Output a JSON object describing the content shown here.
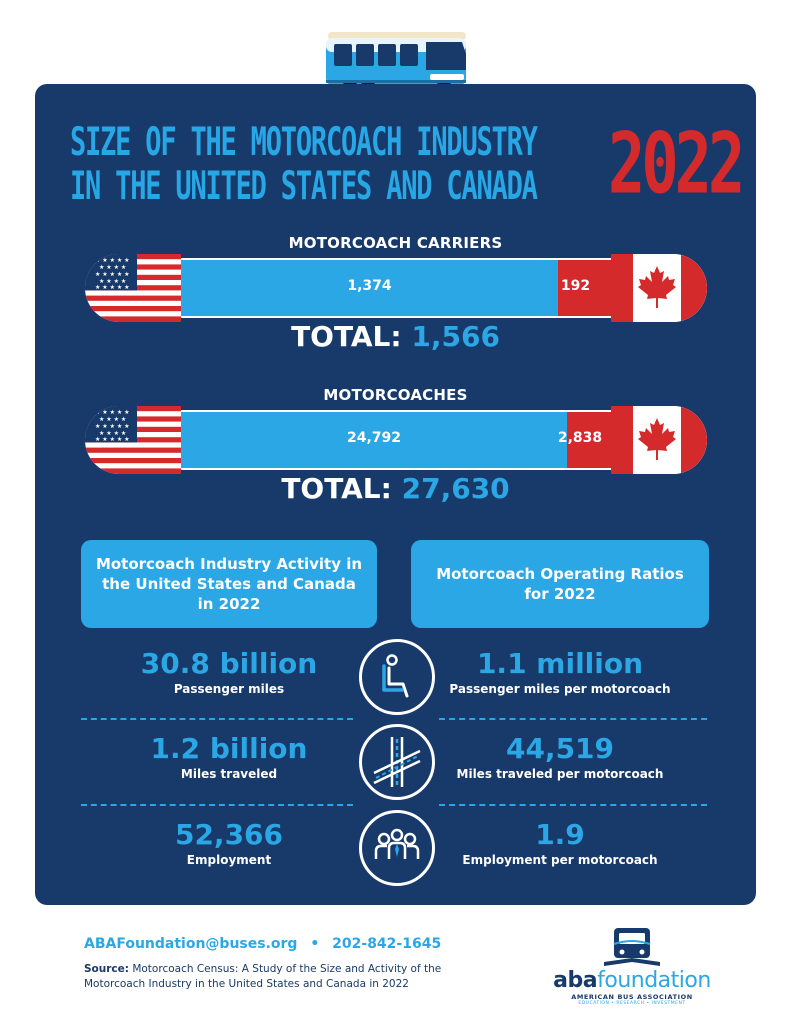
{
  "title": {
    "line1": "SIZE OF THE MOTORCOACH INDUSTRY",
    "line2": "IN THE UNITED STATES AND CANADA",
    "year": "2022"
  },
  "colors": {
    "navy": "#183a6a",
    "blue": "#2ba7e6",
    "red": "#d42a2c"
  },
  "carriers": {
    "label": "MOTORCOACH CARRIERS",
    "us_value": "1,374",
    "ca_value": "192",
    "us_share": 0.877,
    "total_label": "TOTAL:",
    "total_value": "1,566"
  },
  "motorcoaches": {
    "label": "MOTORCOACHES",
    "us_value": "24,792",
    "ca_value": "2,838",
    "us_share": 0.897,
    "total_label": "TOTAL:",
    "total_value": "27,630"
  },
  "cards": {
    "activity": "Motorcoach Industry Activity in the United States and Canada in 2022",
    "ratios": "Motorcoach Operating Ratios for 2022"
  },
  "stats": [
    {
      "left_value": "30.8 billion",
      "left_label": "Passenger miles",
      "icon": "seat-icon",
      "right_value": "1.1 million",
      "right_label": "Passenger miles per motorcoach"
    },
    {
      "left_value": "1.2 billion",
      "left_label": "Miles traveled",
      "icon": "road-icon",
      "right_value": "44,519",
      "right_label": "Miles traveled per motorcoach"
    },
    {
      "left_value": "52,366",
      "left_label": "Employment",
      "icon": "people-icon",
      "right_value": "1.9",
      "right_label": "Employment per motorcoach"
    }
  ],
  "footer": {
    "email": "ABAFoundation@buses.org",
    "separator": "•",
    "phone": "202-842-1645",
    "source_label": "Source:",
    "source_text": "Motorcoach Census: A Study of the Size and Activity of the Motorcoach Industry in the United States and Canada in 2022"
  },
  "logo": {
    "word_a": "aba",
    "word_b": "foundation",
    "subtitle": "AMERICAN BUS ASSOCIATION",
    "tagline": "EDUCATION • RESEARCH • INVESTMENT"
  }
}
